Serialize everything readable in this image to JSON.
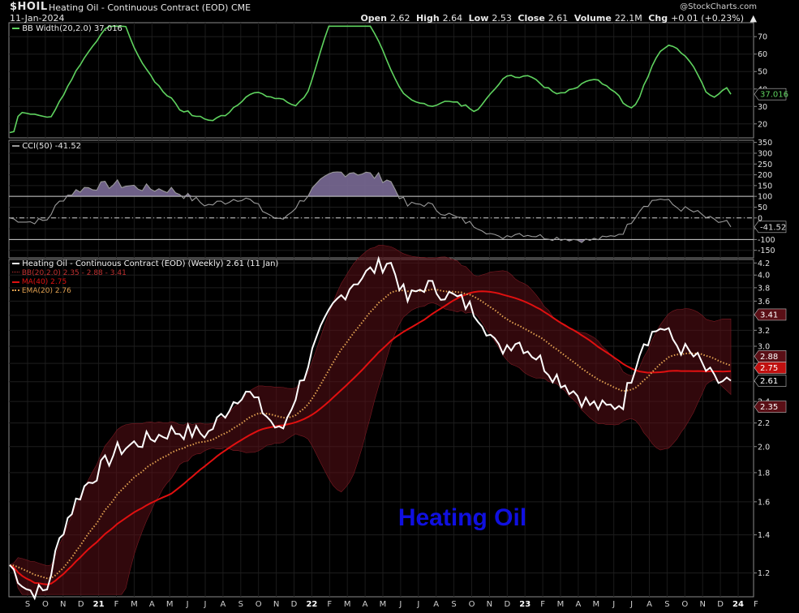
{
  "header": {
    "symbol": "$HOIL",
    "title": "Heating Oil - Continuous Contract (EOD)",
    "exchange": "CME",
    "date": "11-Jan-2024",
    "watermark": "@StockCharts.com",
    "ohlc": {
      "open_label": "Open",
      "open": "2.62",
      "high_label": "High",
      "high": "2.64",
      "low_label": "Low",
      "low": "2.53",
      "close_label": "Close",
      "close": "2.61",
      "volume_label": "Volume",
      "volume": "22.1M",
      "chg_label": "Chg",
      "chg": "+0.01 (+0.23%)",
      "chg_icon": "up-triangle-icon"
    }
  },
  "colors": {
    "background": "#000000",
    "bbwidth": "#5fd35f",
    "cci_line": "#9a9a9a",
    "cci_fill": "#7a6a96",
    "price": "#ffffff",
    "ma40": "#e01010",
    "ema20": "#e0a050",
    "band": "#5a0f16",
    "annotation": "#1010e0"
  },
  "panels": {
    "bbwidth": {
      "label": "BB Width(20,2.0) 37.016",
      "value_tag": "37.016",
      "ticks": [
        20,
        30,
        40,
        50,
        60,
        70
      ],
      "range": [
        12,
        78
      ]
    },
    "cci": {
      "label": "CCI(50) -41.52",
      "value_tag": "-41.52",
      "ticks": [
        -150,
        -100,
        -50,
        0,
        50,
        100,
        150,
        200,
        250,
        300,
        350
      ],
      "range": [
        -185,
        360
      ],
      "levels": [
        100,
        0,
        -100
      ]
    },
    "price": {
      "legend": [
        {
          "text": "Heating Oil - Continuous Contract (EOD) (Weekly) 2.61 (11 Jan)",
          "color": "#ffffff"
        },
        {
          "text": "BB(20,2.0) 2.35 - 2.88 - 3.41",
          "color": "#c03030"
        },
        {
          "text": "MA(40) 2.75",
          "color": "#e01010"
        },
        {
          "text": "EMA(20) 2.76",
          "color": "#e0a050"
        }
      ],
      "ticks": [
        1.2,
        1.4,
        1.6,
        1.8,
        2.0,
        2.2,
        2.4,
        2.6,
        2.8,
        3.0,
        3.2,
        3.4,
        3.6,
        3.8,
        4.0,
        4.2
      ],
      "range": [
        1.09,
        4.26
      ],
      "scale": "log",
      "tags": [
        {
          "text": "3.41",
          "value": 3.41,
          "style": "band"
        },
        {
          "text": "2.88",
          "value": 2.88,
          "style": "band"
        },
        {
          "text": "2.75",
          "value": 2.75,
          "style": "ma"
        },
        {
          "text": "2.61",
          "value": 2.61,
          "style": "price"
        },
        {
          "text": "2.35",
          "value": 2.35,
          "style": "band"
        }
      ],
      "annotation": "Heating Oil"
    }
  },
  "x_axis": {
    "labels": [
      "S",
      "O",
      "N",
      "D",
      "21",
      "F",
      "M",
      "A",
      "M",
      "J",
      "J",
      "A",
      "S",
      "O",
      "N",
      "D",
      "22",
      "F",
      "M",
      "A",
      "M",
      "J",
      "J",
      "A",
      "S",
      "O",
      "N",
      "D",
      "23",
      "F",
      "M",
      "A",
      "M",
      "J",
      "J",
      "A",
      "S",
      "O",
      "N",
      "D",
      "24",
      "F"
    ]
  },
  "chart_data": {
    "type": "line",
    "title": "Heating Oil - Continuous Contract (EOD)",
    "x_unit": "weekly, Sep 2020 to Jan 2024",
    "series": [
      {
        "name": "Heating Oil - Continuous Contract (EOD) (Weekly)",
        "last": 2.61,
        "keypoints": [
          [
            "2020-09",
            1.24
          ],
          [
            "2020-10",
            1.12
          ],
          [
            "2020-11",
            1.11
          ],
          [
            "2020-12",
            1.45
          ],
          [
            "2021-01",
            1.68
          ],
          [
            "2021-03",
            1.97
          ],
          [
            "2021-06",
            2.13
          ],
          [
            "2021-08",
            2.11
          ],
          [
            "2021-10",
            2.53
          ],
          [
            "2021-12",
            2.1
          ],
          [
            "2022-01",
            2.55
          ],
          [
            "2022-03",
            3.55
          ],
          [
            "2022-04",
            3.88
          ],
          [
            "2022-06",
            4.25
          ],
          [
            "2022-07",
            3.6
          ],
          [
            "2022-08",
            3.85
          ],
          [
            "2022-10",
            3.6
          ],
          [
            "2022-11",
            3.4
          ],
          [
            "2022-12",
            2.95
          ],
          [
            "2023-01",
            3.08
          ],
          [
            "2023-02",
            2.9
          ],
          [
            "2023-03",
            2.7
          ],
          [
            "2023-05",
            2.38
          ],
          [
            "2023-06",
            2.33
          ],
          [
            "2023-07",
            2.4
          ],
          [
            "2023-08",
            3.05
          ],
          [
            "2023-09",
            3.25
          ],
          [
            "2023-10",
            3.0
          ],
          [
            "2023-11",
            2.85
          ],
          [
            "2023-12",
            2.6
          ],
          [
            "2024-01",
            2.61
          ]
        ]
      },
      {
        "name": "MA(40)",
        "last": 2.75
      },
      {
        "name": "EMA(20)",
        "last": 2.76
      },
      {
        "name": "BB(20,2.0)",
        "lower": 2.35,
        "middle": 2.88,
        "upper": 3.41
      }
    ],
    "indicators": {
      "bb_width": {
        "name": "BB Width(20,2.0)",
        "last": 37.016
      },
      "cci": {
        "name": "CCI(50)",
        "last": -41.52
      }
    },
    "ylim": [
      1.09,
      4.26
    ]
  }
}
